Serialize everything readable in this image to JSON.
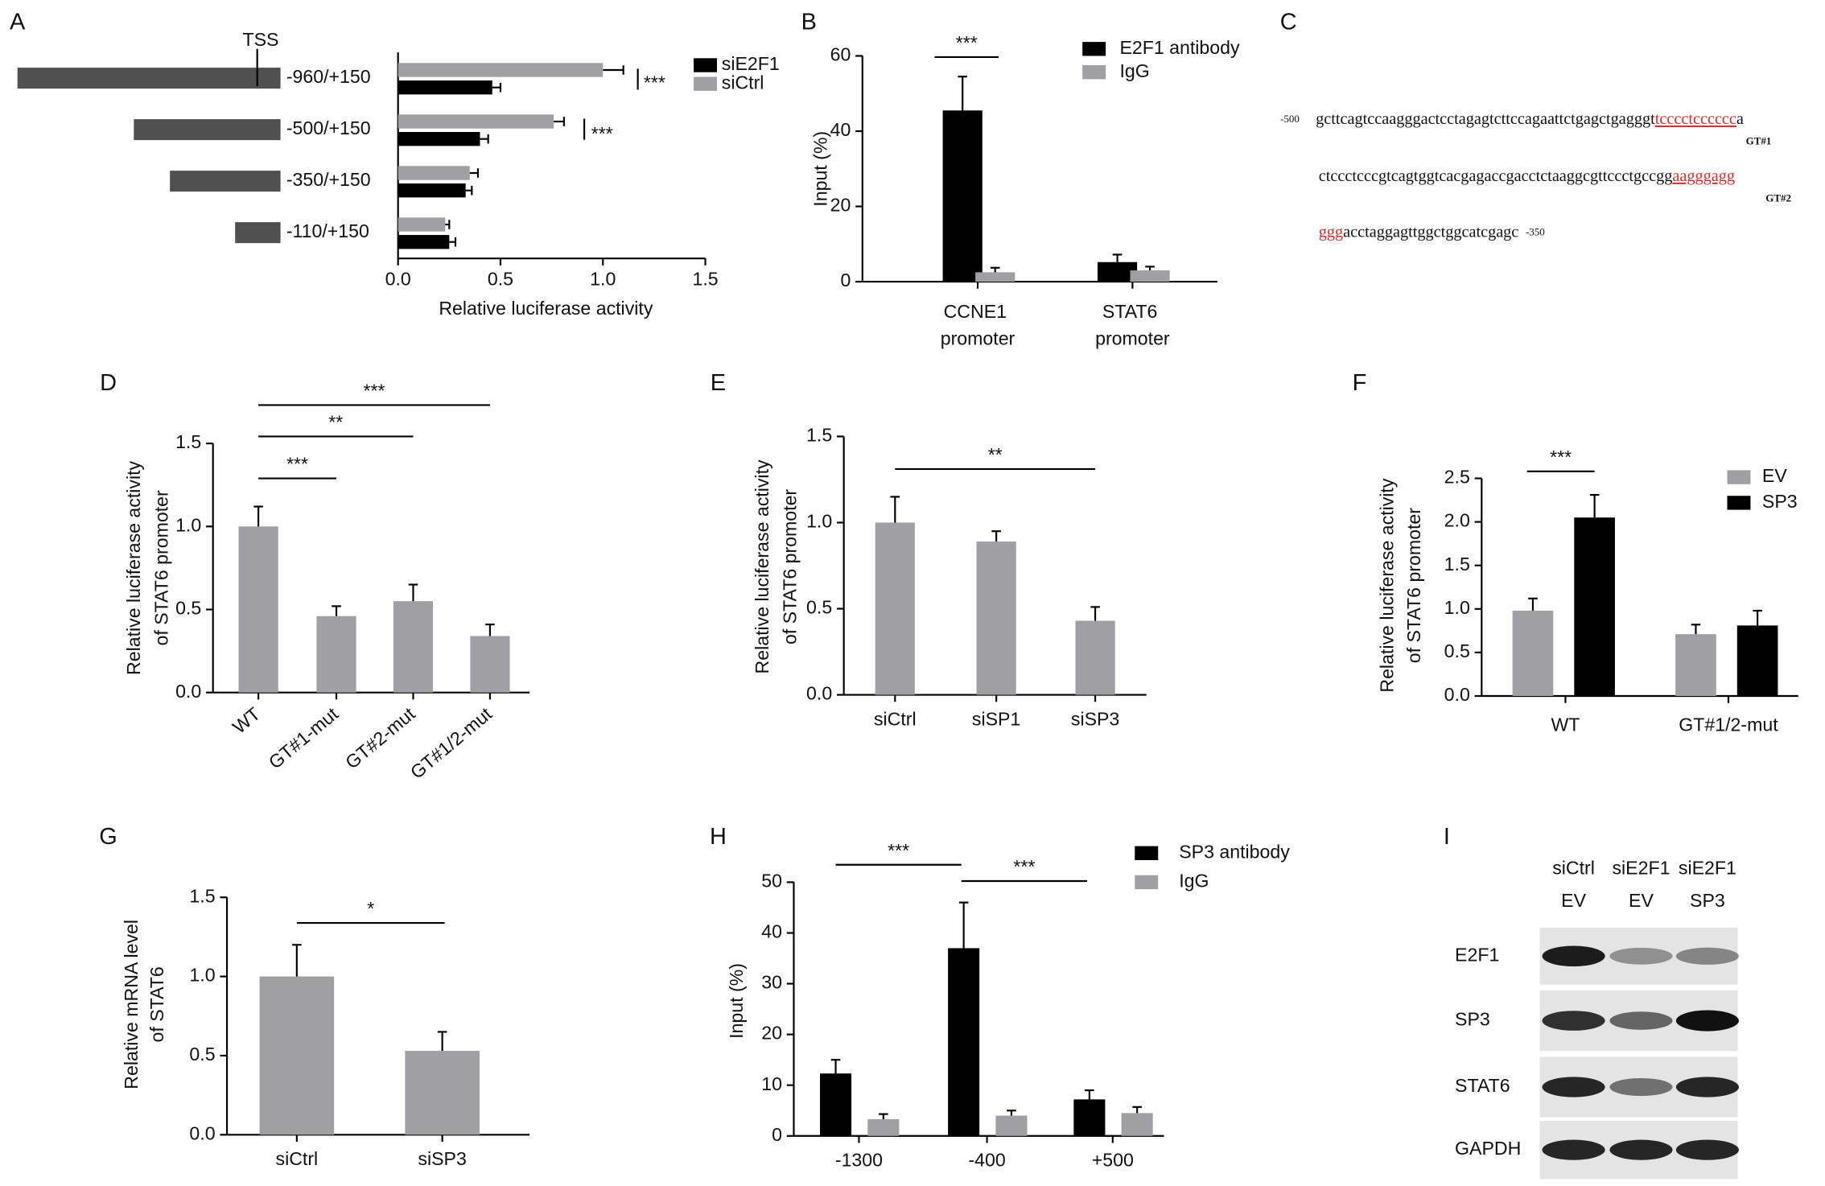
{
  "chart_data": [
    {
      "panel": "A",
      "type": "hbar",
      "marker": "TSS",
      "categories": [
        "-960/+150",
        "-500/+150",
        "-350/+150",
        "-110/+150"
      ],
      "series": [
        {
          "name": "siE2F1",
          "color": "#000000",
          "values": [
            0.46,
            0.4,
            0.33,
            0.25
          ],
          "errors": [
            0.04,
            0.04,
            0.03,
            0.03
          ]
        },
        {
          "name": "siCtrl",
          "color": "#a0a0a4",
          "values": [
            1.0,
            0.76,
            0.35,
            0.23
          ],
          "errors": [
            0.1,
            0.05,
            0.04,
            0.02
          ]
        }
      ],
      "xlim": [
        0,
        1.5
      ],
      "xticks": [
        {
          "value": 0,
          "label": "0.0"
        },
        {
          "value": 0.5,
          "label": "0.5"
        },
        {
          "value": 1,
          "label": "1.0"
        },
        {
          "value": 1.5,
          "label": "1.5"
        }
      ],
      "xlabel": "Relative luciferase activity",
      "annotations": [
        "***",
        "***"
      ]
    },
    {
      "panel": "B",
      "type": "bar",
      "categories": [
        "CCNE1 promoter",
        "STAT6 promoter"
      ],
      "series": [
        {
          "name": "E2F1 antibody",
          "color": "#000000",
          "values": [
            45.5,
            5.2
          ],
          "errors": [
            9,
            2
          ]
        },
        {
          "name": "IgG",
          "color": "#a0a0a4",
          "values": [
            2.5,
            3
          ],
          "errors": [
            1.2,
            1
          ]
        }
      ],
      "ylim": [
        0,
        60
      ],
      "yticks": [
        0,
        20,
        40,
        60
      ],
      "ylabel": [
        "Input (%)"
      ],
      "annotations": [
        "***"
      ]
    },
    {
      "panel": "D",
      "type": "bar",
      "categories": [
        "WT",
        "GT#1-mut",
        "GT#2-mut",
        "GT#1/2-mut"
      ],
      "values": [
        1.0,
        0.46,
        0.55,
        0.34
      ],
      "errors": [
        0.12,
        0.06,
        0.1,
        0.07
      ],
      "color": "#a0a0a4",
      "ylim": [
        0,
        1.5
      ],
      "yticks": [
        {
          "value": 0,
          "label": "0.0"
        },
        {
          "value": 0.5,
          "label": "0.5"
        },
        {
          "value": 1,
          "label": "1.0"
        },
        {
          "value": 1.5,
          "label": "1.5"
        }
      ],
      "ylabel": [
        "Relative luciferase activity",
        "of STAT6 promoter"
      ],
      "annotations": [
        "***",
        "**",
        "***"
      ]
    },
    {
      "panel": "E",
      "type": "bar",
      "categories": [
        "siCtrl",
        "siSP1",
        "siSP3"
      ],
      "values": [
        1.0,
        0.89,
        0.43
      ],
      "errors": [
        0.15,
        0.06,
        0.08
      ],
      "color": "#a0a0a4",
      "ylim": [
        0,
        1.5
      ],
      "yticks": [
        {
          "value": 0,
          "label": "0.0"
        },
        {
          "value": 0.5,
          "label": "0.5"
        },
        {
          "value": 1,
          "label": "1.0"
        },
        {
          "value": 1.5,
          "label": "1.5"
        }
      ],
      "ylabel": [
        "Relative luciferase activity",
        "of STAT6 promoter"
      ],
      "annotations": [
        "**"
      ]
    },
    {
      "panel": "F",
      "type": "bar",
      "categories": [
        "WT",
        "GT#1/2-mut"
      ],
      "series": [
        {
          "name": "EV",
          "color": "#a0a0a4",
          "values": [
            0.98,
            0.71
          ],
          "errors": [
            0.14,
            0.11
          ]
        },
        {
          "name": "SP3",
          "color": "#000000",
          "values": [
            2.05,
            0.81
          ],
          "errors": [
            0.26,
            0.17
          ]
        }
      ],
      "ylim": [
        0,
        2.5
      ],
      "yticks": [
        {
          "value": 0,
          "label": "0.0"
        },
        {
          "value": 0.5,
          "label": "0.5"
        },
        {
          "value": 1,
          "label": "1.0"
        },
        {
          "value": 1.5,
          "label": "1.5"
        },
        {
          "value": 2,
          "label": "2.0"
        },
        {
          "value": 2.5,
          "label": "2.5"
        }
      ],
      "ylabel": [
        "Relative luciferase activity",
        "of STAT6 promoter"
      ],
      "annotations": [
        "***"
      ]
    },
    {
      "panel": "G",
      "type": "bar",
      "categories": [
        "siCtrl",
        "siSP3"
      ],
      "values": [
        1.0,
        0.53
      ],
      "errors": [
        0.2,
        0.12
      ],
      "color": "#a0a0a4",
      "ylim": [
        0,
        1.5
      ],
      "yticks": [
        {
          "value": 0,
          "label": "0.0"
        },
        {
          "value": 0.5,
          "label": "0.5"
        },
        {
          "value": 1,
          "label": "1.0"
        },
        {
          "value": 1.5,
          "label": "1.5"
        }
      ],
      "ylabel": [
        "Relative mRNA level",
        "of STAT6"
      ],
      "annotations": [
        "*"
      ]
    },
    {
      "panel": "H",
      "type": "bar",
      "categories": [
        "-1300",
        "-400",
        "+500"
      ],
      "series": [
        {
          "name": "SP3 antibody",
          "color": "#000000",
          "values": [
            12.3,
            37,
            7.2
          ],
          "errors": [
            2.7,
            9,
            1.8
          ]
        },
        {
          "name": "IgG",
          "color": "#a0a0a4",
          "values": [
            3.3,
            4,
            4.5
          ],
          "errors": [
            1,
            1,
            1.2
          ]
        }
      ],
      "ylim": [
        0,
        50
      ],
      "yticks": [
        0,
        10,
        20,
        30,
        40,
        50
      ],
      "ylabel": [
        "Input (%)"
      ],
      "annotations": [
        "***",
        "***"
      ]
    }
  ],
  "sequence": {
    "panel": "C",
    "lines": [
      [
        {
          "text": "-500",
          "style": "position"
        },
        {
          "text": "gcttcagtccaagggactcctagagtcttccagaattctgagctgagggt",
          "style": "plain"
        },
        {
          "text": "tcccctcccccc",
          "style": "site"
        },
        {
          "text": "a",
          "style": "plain"
        }
      ],
      [
        {
          "text": "ctccctcccgtcagtggtcacgagaccgacctctaaggcgttccctgccgg",
          "style": "plain"
        },
        {
          "text": "aagggagg",
          "style": "site"
        }
      ],
      [
        {
          "text": "ggg",
          "style": "site"
        },
        {
          "text": "acctaggagttggctggcatcgagc",
          "style": "plain"
        },
        {
          "text": "-350",
          "style": "position"
        }
      ]
    ],
    "site_labels": [
      "GT#1",
      "GT#2"
    ]
  },
  "blot": {
    "panel": "I",
    "columns": [
      [
        "siCtrl",
        "EV"
      ],
      [
        "siE2F1",
        "EV"
      ],
      [
        "siE2F1",
        "SP3"
      ]
    ],
    "rows": [
      "E2F1",
      "SP3",
      "STAT6",
      "GAPDH"
    ]
  }
}
